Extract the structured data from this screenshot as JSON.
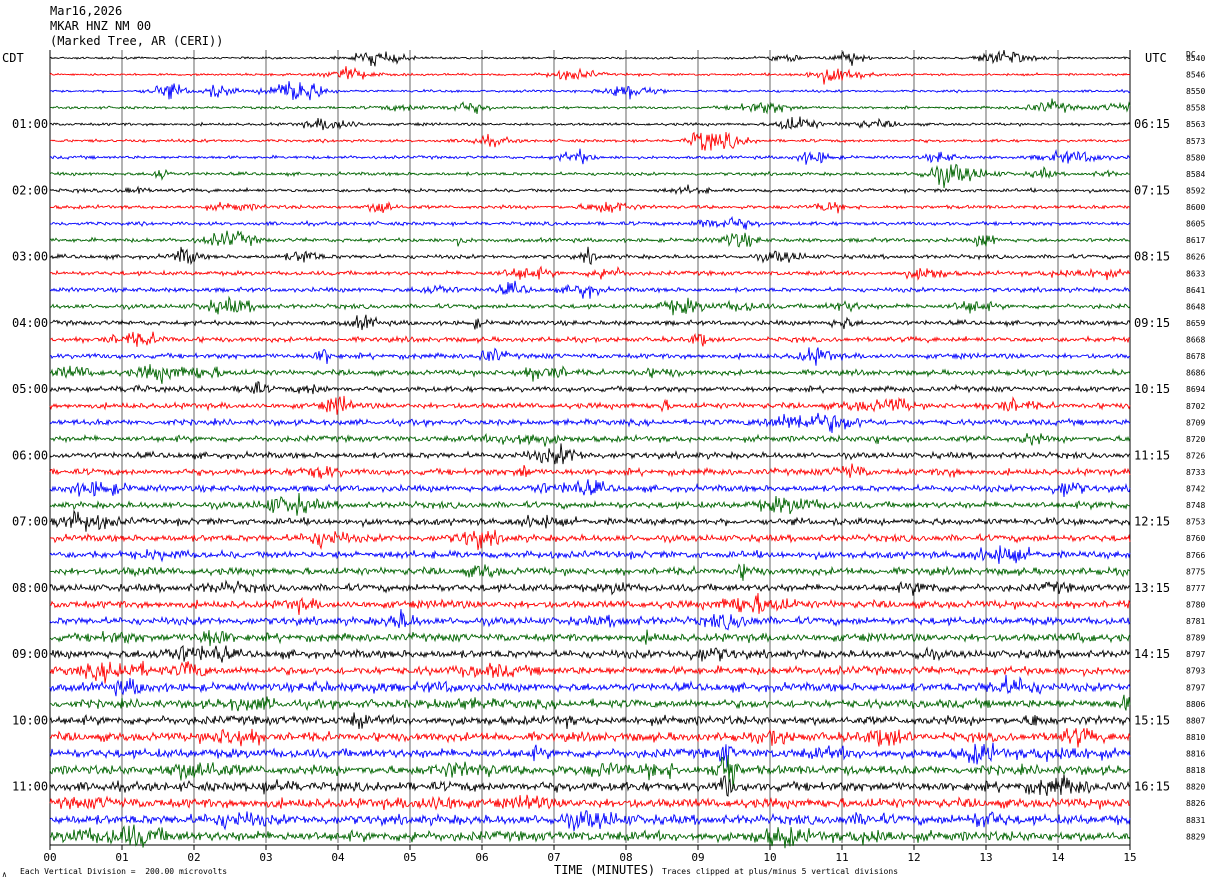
{
  "header": {
    "date": "Mar16,2026",
    "station": "MKAR HNZ NM 00",
    "location": "(Marked Tree, AR (CERI))"
  },
  "labels": {
    "left_tz": "CDT",
    "right_tz": "UTC",
    "dc_label": "DC",
    "xlabel": "TIME (MINUTES)",
    "scale_note": "Each Vertical Division =  200.00 microvolts",
    "clip_note": "Traces clipped at plus/minus 5 vertical divisions",
    "corner_mark": "∧"
  },
  "chart_data": {
    "type": "seismogram-helicorder",
    "x_ticks": [
      "00",
      "01",
      "02",
      "03",
      "04",
      "05",
      "06",
      "07",
      "08",
      "09",
      "10",
      "11",
      "12",
      "13",
      "14",
      "15"
    ],
    "xlim": [
      0,
      15
    ],
    "trace_colors": [
      "#000000",
      "#ff0000",
      "#0000ff",
      "#006400"
    ],
    "left_time_labels": [
      "01:00",
      "02:00",
      "03:00",
      "04:00",
      "05:00",
      "06:00",
      "07:00",
      "08:00",
      "09:00",
      "10:00",
      "11:00"
    ],
    "right_time_labels": [
      "06:15",
      "07:15",
      "08:15",
      "09:15",
      "10:15",
      "11:15",
      "12:15",
      "13:15",
      "14:15",
      "15:15",
      "16:15"
    ],
    "dc_values": [
      "8540",
      "8546",
      "8550",
      "8558",
      "8563",
      "8573",
      "8580",
      "8584",
      "8592",
      "8600",
      "8605",
      "8617",
      "8626",
      "8633",
      "8641",
      "8648",
      "8659",
      "8668",
      "8678",
      "8686",
      "8694",
      "8702",
      "8709",
      "8720",
      "8726",
      "8733",
      "8742",
      "8748",
      "8753",
      "8760",
      "8766",
      "8775",
      "8777",
      "8780",
      "8781",
      "8789",
      "8797",
      "8793",
      "8797",
      "8806",
      "8807",
      "8810",
      "8816",
      "8818",
      "8820",
      "8826",
      "8831",
      "8829"
    ],
    "trace_count": 48,
    "grid": true
  }
}
